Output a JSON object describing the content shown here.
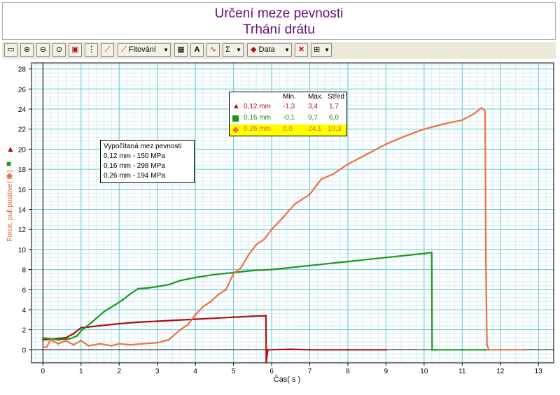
{
  "header": {
    "title_line1": "Určení meze pevnosti",
    "title_line2": "Trhání drátu"
  },
  "toolbar": {
    "fit_label": "Fitování",
    "data_label": "Data",
    "icons": [
      "chart-options-icon",
      "zoom-in-icon",
      "zoom-out-icon",
      "zoom-fit-icon",
      "lock-icon",
      "scale-icon",
      "tangent-icon",
      "fit-line-icon",
      "table-icon",
      "annotation-A-icon",
      "derivative-icon",
      "sigma-icon",
      "data-icon",
      "delete-icon",
      "graph-layout-icon"
    ]
  },
  "legend": {
    "headers": [
      "Min.",
      "Max.",
      "Střed"
    ],
    "rows": [
      {
        "name": "0,12 mm",
        "min": "-1,3",
        "max": "3,4",
        "mid": "1,7",
        "color": "#b01010",
        "marker": "triangle"
      },
      {
        "name": "0,16 mm",
        "min": "-0,1",
        "max": "9,7",
        "mid": "6,0",
        "color": "#1a9a1a",
        "marker": "square"
      },
      {
        "name": "0,26 mm",
        "min": "0,0",
        "max": "24,1",
        "mid": "10,3",
        "color": "#f07040",
        "marker": "diamond",
        "highlight": true
      }
    ]
  },
  "calc_box": {
    "title": "Vypočítaná mez pevnosti",
    "lines": [
      "0,12 mm - 150 MPa",
      "0,16 mm - 298 MPa",
      "0,26 mm - 194 MPa"
    ]
  },
  "chart_data": {
    "type": "line",
    "title": "Určení meze pevnosti",
    "subtitle": "Trhání drátu",
    "xlabel": "Čas( s )",
    "ylabel": "Force, pull positive( N )",
    "xlim": [
      -0.3,
      13.4
    ],
    "ylim": [
      -1.3,
      28.6
    ],
    "xticks": [
      0,
      1,
      2,
      3,
      4,
      5,
      6,
      7,
      8,
      9,
      10,
      11,
      12,
      13
    ],
    "yticks": [
      0,
      2,
      4,
      6,
      8,
      10,
      12,
      14,
      16,
      18,
      20,
      22,
      24,
      26,
      28
    ],
    "grid": true,
    "series": [
      {
        "name": "0,12 mm",
        "color": "#b01010",
        "x": [
          0,
          0.3,
          0.6,
          0.8,
          1.0,
          1.5,
          2.0,
          2.5,
          3.0,
          3.5,
          4.0,
          4.5,
          5.0,
          5.5,
          5.85,
          5.86,
          5.9,
          6.5,
          7.0,
          8.0,
          9.0
        ],
        "y": [
          1.0,
          1.1,
          1.2,
          1.6,
          2.2,
          2.4,
          2.6,
          2.75,
          2.85,
          2.95,
          3.05,
          3.15,
          3.25,
          3.35,
          3.4,
          -1.2,
          0.0,
          0.05,
          0.0,
          0.0,
          0.0
        ]
      },
      {
        "name": "0,16 mm",
        "color": "#1a9a1a",
        "x": [
          0,
          0.4,
          0.7,
          0.9,
          1.0,
          1.3,
          1.6,
          1.9,
          2.1,
          2.3,
          2.5,
          2.7,
          3.0,
          3.3,
          3.6,
          4.0,
          4.5,
          5.0,
          5.5,
          6.0,
          7.0,
          8.0,
          9.0,
          10.0,
          10.2,
          10.21,
          10.3,
          11.0,
          11.6
        ],
        "y": [
          1.2,
          1.0,
          1.1,
          1.4,
          1.9,
          2.8,
          3.8,
          4.5,
          5.0,
          5.6,
          6.1,
          6.15,
          6.3,
          6.5,
          6.9,
          7.2,
          7.5,
          7.7,
          7.9,
          8.0,
          8.4,
          8.8,
          9.2,
          9.6,
          9.7,
          0.0,
          0.0,
          0.0,
          0.0
        ]
      },
      {
        "name": "0,26 mm",
        "color": "#f07040",
        "x": [
          0,
          0.1,
          0.2,
          0.4,
          0.6,
          0.8,
          1.0,
          1.2,
          1.5,
          1.8,
          2.0,
          2.3,
          2.6,
          3.0,
          3.3,
          3.6,
          3.8,
          4.0,
          4.2,
          4.4,
          4.6,
          4.8,
          5.0,
          5.2,
          5.4,
          5.6,
          5.8,
          6.0,
          6.3,
          6.6,
          7.0,
          7.3,
          7.6,
          8.0,
          8.5,
          9.0,
          9.5,
          10.0,
          10.5,
          11.0,
          11.3,
          11.5,
          11.55,
          11.6,
          11.62,
          11.65,
          11.7,
          12.0,
          12.6
        ],
        "y": [
          0.2,
          0.3,
          1.0,
          0.6,
          0.9,
          0.5,
          0.9,
          0.4,
          0.6,
          0.4,
          0.6,
          0.5,
          0.6,
          0.7,
          1.0,
          2.0,
          2.5,
          3.5,
          4.3,
          4.8,
          5.5,
          6.0,
          7.6,
          8.2,
          9.5,
          10.5,
          11.0,
          12.0,
          13.2,
          14.5,
          15.5,
          17.0,
          17.5,
          18.5,
          19.5,
          20.5,
          21.3,
          22.0,
          22.5,
          22.9,
          23.5,
          24.1,
          24.0,
          23.8,
          9.2,
          0.5,
          0.0,
          0.0,
          0.0
        ]
      }
    ],
    "legend_position": "top-center"
  }
}
